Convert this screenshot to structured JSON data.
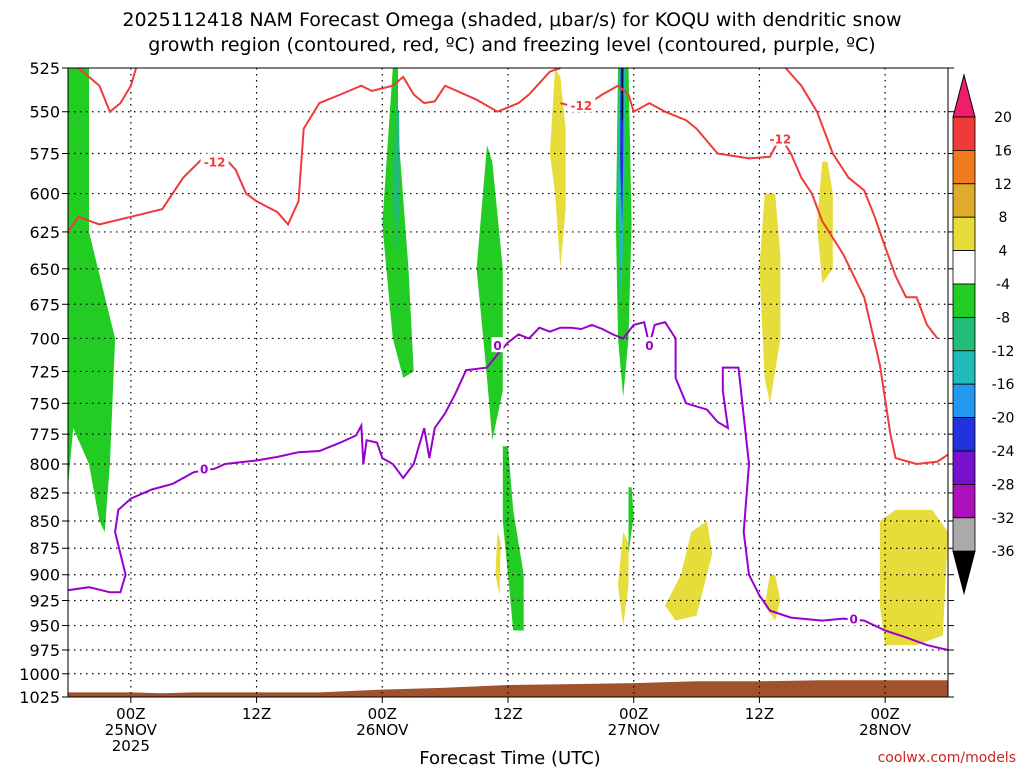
{
  "chart_data": {
    "type": "heatmap",
    "title_line1": "2025112418 NAM Forecast Omega (shaded, μbar/s) for KOQU with dendritic snow",
    "title_line2": "growth region (contoured, red, ºC) and freezing level (contoured, purple, ºC)",
    "xlabel": "Forecast Time (UTC)",
    "credit": "coolwx.com/models",
    "y_scale": "log-pressure",
    "ylim": [
      1025,
      525
    ],
    "y_ticks": [
      525,
      550,
      575,
      600,
      625,
      650,
      675,
      700,
      725,
      750,
      775,
      800,
      825,
      850,
      875,
      900,
      925,
      950,
      975,
      1000,
      1025
    ],
    "xlim": [
      -6,
      78
    ],
    "x_ticks": [
      {
        "hour": 0,
        "lines": [
          "00Z",
          "25NOV",
          "2025"
        ]
      },
      {
        "hour": 12,
        "lines": [
          "12Z"
        ]
      },
      {
        "hour": 24,
        "lines": [
          "00Z",
          "26NOV"
        ]
      },
      {
        "hour": 36,
        "lines": [
          "12Z"
        ]
      },
      {
        "hour": 48,
        "lines": [
          "00Z",
          "27NOV"
        ]
      },
      {
        "hour": 60,
        "lines": [
          "12Z"
        ]
      },
      {
        "hour": 72,
        "lines": [
          "00Z",
          "28NOV"
        ]
      }
    ],
    "grid": true,
    "colorbar": {
      "placement": "right",
      "levels": [
        20,
        16,
        12,
        8,
        4,
        -4,
        -8,
        -12,
        -16,
        -20,
        -24,
        -28,
        -32,
        -36
      ],
      "colors": [
        "#f21c6c",
        "#ef3a3a",
        "#f07a1e",
        "#e0aa2a",
        "#e6dc3a",
        "#ffffff",
        "#22cc22",
        "#22bb77",
        "#22bbbb",
        "#2299ee",
        "#2233dd",
        "#7711cc",
        "#aa11bb",
        "#aaaaaa",
        "#000000"
      ]
    },
    "shaded_regions": [
      {
        "sign": "rising",
        "points": [
          [
            -6,
            525
          ],
          [
            -4,
            525
          ],
          [
            -4,
            625
          ],
          [
            -1.5,
            700
          ],
          [
            -2,
            800
          ],
          [
            -2.5,
            860
          ],
          [
            -3,
            850
          ],
          [
            -4,
            800
          ],
          [
            -5.5,
            770
          ],
          [
            -6,
            820
          ]
        ]
      },
      {
        "sign": "rising",
        "points": [
          [
            25,
            525
          ],
          [
            24,
            620
          ],
          [
            25,
            700
          ],
          [
            26,
            730
          ],
          [
            27,
            725
          ],
          [
            26.5,
            650
          ],
          [
            25.5,
            560
          ],
          [
            25.5,
            525
          ]
        ]
      },
      {
        "sign": "rising",
        "points": [
          [
            34,
            570
          ],
          [
            33,
            650
          ],
          [
            34,
            730
          ],
          [
            34.5,
            780
          ],
          [
            35.5,
            740
          ],
          [
            35.5,
            650
          ],
          [
            34.5,
            580
          ]
        ]
      },
      {
        "sign": "rising",
        "points": [
          [
            35.5,
            785
          ],
          [
            35.5,
            850
          ],
          [
            36,
            900
          ],
          [
            36.5,
            955
          ],
          [
            37.5,
            955
          ],
          [
            37.5,
            900
          ],
          [
            36.5,
            840
          ],
          [
            36,
            785
          ]
        ]
      },
      {
        "sign": "rising",
        "points": [
          [
            46.5,
            525
          ],
          [
            46.3,
            620
          ],
          [
            46.5,
            700
          ],
          [
            47,
            745
          ],
          [
            47.5,
            700
          ],
          [
            47.8,
            620
          ],
          [
            47.5,
            525
          ]
        ]
      },
      {
        "sign": "rising",
        "points": [
          [
            47.5,
            820
          ],
          [
            47.5,
            880
          ],
          [
            48,
            845
          ],
          [
            47.8,
            820
          ]
        ]
      },
      {
        "sign": "sinking",
        "points": [
          [
            40.5,
            525
          ],
          [
            40,
            575
          ],
          [
            40.5,
            600
          ],
          [
            41,
            650
          ],
          [
            41.5,
            610
          ],
          [
            41.5,
            560
          ],
          [
            41,
            530
          ]
        ]
      },
      {
        "sign": "sinking",
        "points": [
          [
            60.5,
            600
          ],
          [
            60,
            650
          ],
          [
            60.5,
            730
          ],
          [
            61,
            750
          ],
          [
            62,
            700
          ],
          [
            62,
            640
          ],
          [
            61.5,
            600
          ]
        ]
      },
      {
        "sign": "sinking",
        "points": [
          [
            66,
            580
          ],
          [
            65.5,
            620
          ],
          [
            66,
            660
          ],
          [
            67,
            650
          ],
          [
            67,
            600
          ],
          [
            66.5,
            580
          ]
        ]
      },
      {
        "sign": "sinking",
        "points": [
          [
            53.5,
            860
          ],
          [
            52.5,
            900
          ],
          [
            51,
            930
          ],
          [
            52,
            945
          ],
          [
            54,
            940
          ],
          [
            55.5,
            880
          ],
          [
            55,
            850
          ]
        ]
      },
      {
        "sign": "sinking",
        "points": [
          [
            47,
            860
          ],
          [
            46.5,
            910
          ],
          [
            47,
            950
          ],
          [
            47.5,
            910
          ],
          [
            47.5,
            870
          ]
        ]
      },
      {
        "sign": "sinking",
        "points": [
          [
            61,
            900
          ],
          [
            60.5,
            930
          ],
          [
            61.5,
            945
          ],
          [
            62,
            925
          ],
          [
            61.5,
            900
          ]
        ]
      },
      {
        "sign": "sinking",
        "points": [
          [
            71.5,
            850
          ],
          [
            71.5,
            930
          ],
          [
            72,
            970
          ],
          [
            75,
            970
          ],
          [
            77.5,
            960
          ],
          [
            78,
            860
          ],
          [
            76.5,
            840
          ],
          [
            73,
            840
          ]
        ]
      },
      {
        "sign": "sinking",
        "points": [
          [
            35,
            860
          ],
          [
            34.8,
            900
          ],
          [
            35.2,
            920
          ],
          [
            35.3,
            870
          ]
        ]
      }
    ],
    "minus12_contour": [
      [
        [
          -6,
          625
        ],
        [
          -5,
          615
        ],
        [
          -3,
          620
        ],
        [
          0,
          615
        ],
        [
          3,
          610
        ],
        [
          5,
          590
        ],
        [
          7,
          577
        ],
        [
          9,
          578
        ],
        [
          10,
          585
        ],
        [
          11,
          600
        ],
        [
          12,
          605
        ],
        [
          14,
          612
        ],
        [
          15,
          620
        ],
        [
          16,
          605
        ],
        [
          16.5,
          560
        ],
        [
          18,
          545
        ],
        [
          20,
          540
        ],
        [
          22,
          535
        ],
        [
          23,
          538
        ],
        [
          25,
          535
        ],
        [
          26,
          530
        ],
        [
          27,
          540
        ],
        [
          28,
          545
        ],
        [
          29,
          544
        ],
        [
          30,
          535
        ],
        [
          33,
          543
        ],
        [
          35,
          550
        ],
        [
          37,
          545
        ],
        [
          38,
          540
        ],
        [
          40,
          527
        ],
        [
          41,
          525
        ]
      ],
      [
        [
          41,
          545
        ],
        [
          43,
          548
        ],
        [
          45,
          540
        ],
        [
          46.5,
          535
        ],
        [
          47.5,
          540
        ],
        [
          48,
          550
        ],
        [
          49.5,
          545
        ],
        [
          51,
          550
        ],
        [
          53,
          555
        ],
        [
          54,
          560
        ],
        [
          56,
          575
        ],
        [
          59,
          578
        ],
        [
          61,
          577
        ],
        [
          62,
          565
        ],
        [
          63,
          575
        ],
        [
          64,
          590
        ],
        [
          65,
          600
        ],
        [
          66,
          618
        ],
        [
          68,
          640
        ],
        [
          70,
          670
        ],
        [
          71.5,
          720
        ],
        [
          72.5,
          775
        ],
        [
          73,
          795
        ],
        [
          75,
          800
        ],
        [
          77,
          798
        ],
        [
          78,
          792
        ]
      ],
      [
        [
          -5,
          525
        ],
        [
          -3,
          535
        ],
        [
          -2,
          550
        ],
        [
          -1,
          545
        ],
        [
          0,
          535
        ],
        [
          0.5,
          525
        ]
      ],
      [
        [
          62.5,
          525
        ],
        [
          64,
          535
        ],
        [
          65.5,
          550
        ],
        [
          67,
          575
        ],
        [
          68.5,
          590
        ],
        [
          70,
          598
        ],
        [
          71,
          615
        ],
        [
          72,
          635
        ],
        [
          73,
          655
        ],
        [
          74,
          670
        ],
        [
          75,
          670
        ],
        [
          76,
          690
        ],
        [
          77,
          700
        ]
      ]
    ],
    "zero_contour": [
      [
        [
          -6,
          915
        ],
        [
          -4,
          912
        ],
        [
          -2,
          917
        ],
        [
          -1,
          917
        ],
        [
          -0.5,
          900
        ],
        [
          -1,
          880
        ],
        [
          -1.5,
          860
        ],
        [
          -1.2,
          840
        ],
        [
          0,
          830
        ],
        [
          2,
          822
        ],
        [
          4,
          817
        ],
        [
          6,
          807
        ],
        [
          8,
          804
        ],
        [
          9,
          800
        ],
        [
          12,
          797
        ],
        [
          14,
          794
        ],
        [
          16,
          790
        ],
        [
          18,
          789
        ],
        [
          20,
          782
        ],
        [
          21.5,
          776
        ],
        [
          22,
          768
        ],
        [
          22.2,
          800
        ],
        [
          22.5,
          780
        ],
        [
          23.5,
          782
        ],
        [
          24,
          795
        ],
        [
          25,
          800
        ],
        [
          26,
          812
        ],
        [
          27,
          800
        ],
        [
          28,
          770
        ],
        [
          28.5,
          795
        ],
        [
          29,
          770
        ],
        [
          30,
          758
        ],
        [
          31,
          742
        ],
        [
          32,
          724
        ],
        [
          34,
          722
        ],
        [
          35,
          712
        ],
        [
          36,
          703
        ],
        [
          37,
          697
        ],
        [
          38,
          700
        ],
        [
          39,
          692
        ],
        [
          40,
          695
        ],
        [
          41,
          692
        ],
        [
          42,
          692
        ],
        [
          43,
          693
        ],
        [
          44,
          690
        ],
        [
          45,
          693
        ],
        [
          46,
          697
        ],
        [
          47,
          700
        ],
        [
          48,
          690
        ],
        [
          49,
          688
        ],
        [
          49.5,
          705
        ],
        [
          50,
          690
        ],
        [
          51,
          688
        ],
        [
          52,
          700
        ],
        [
          52,
          730
        ],
        [
          53,
          750
        ],
        [
          55,
          755
        ],
        [
          56,
          765
        ],
        [
          57,
          770
        ],
        [
          56.5,
          740
        ],
        [
          56.5,
          722
        ],
        [
          58,
          722
        ],
        [
          58.5,
          760
        ],
        [
          59,
          800
        ],
        [
          58.5,
          860
        ],
        [
          59,
          900
        ],
        [
          60,
          920
        ],
        [
          61,
          935
        ],
        [
          63,
          942
        ],
        [
          66,
          945
        ],
        [
          68,
          943
        ],
        [
          70,
          945
        ],
        [
          72,
          955
        ],
        [
          74,
          962
        ],
        [
          76,
          970
        ],
        [
          78,
          975
        ]
      ]
    ],
    "contour_labels": [
      {
        "text": "-12",
        "x": 8,
        "p": 580
      },
      {
        "text": "-12",
        "x": 43,
        "p": 546
      },
      {
        "text": "-12",
        "x": 62,
        "p": 566
      },
      {
        "text": "0",
        "x": 7,
        "p": 804
      },
      {
        "text": "0",
        "x": 35,
        "p": 705
      },
      {
        "text": "0",
        "x": 49.5,
        "p": 705
      },
      {
        "text": "0",
        "x": 69,
        "p": 943
      }
    ],
    "terrain": [
      [
        -6,
        1020
      ],
      [
        0,
        1020
      ],
      [
        3,
        1021
      ],
      [
        6,
        1020
      ],
      [
        12,
        1020
      ],
      [
        18,
        1020
      ],
      [
        24,
        1017
      ],
      [
        30,
        1015
      ],
      [
        36,
        1012
      ],
      [
        42,
        1011
      ],
      [
        48,
        1010
      ],
      [
        54,
        1008
      ],
      [
        60,
        1008
      ],
      [
        66,
        1007
      ],
      [
        72,
        1007
      ],
      [
        78,
        1007
      ]
    ]
  }
}
